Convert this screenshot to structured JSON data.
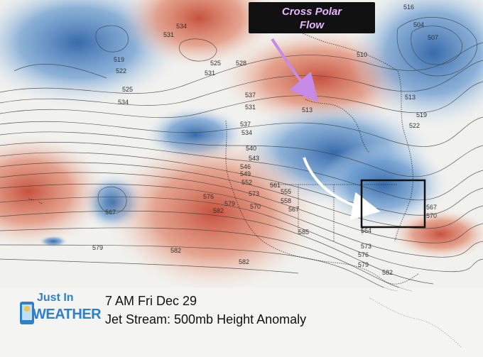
{
  "callout": {
    "line1": "Cross Polar",
    "line2": "Flow"
  },
  "caption": {
    "time": "7 AM Fri Dec 29",
    "title": "Jet Stream: 500mb Height Anomaly"
  },
  "logo": {
    "line1": "Just In",
    "line2": "WEATHER"
  },
  "contour_labels": [
    "531",
    "534",
    "525",
    "528",
    "531",
    "519",
    "522",
    "525",
    "534",
    "537",
    "513",
    "516",
    "510",
    "504",
    "507",
    "513",
    "519",
    "522",
    "531",
    "537",
    "534",
    "540",
    "543",
    "546",
    "549",
    "552",
    "555",
    "558",
    "561",
    "564",
    "567",
    "570",
    "573",
    "576",
    "579",
    "582",
    "567",
    "579",
    "582",
    "585",
    "582",
    "567",
    "570",
    "573",
    "576",
    "579",
    "582"
  ],
  "colors": {
    "warm_anomaly": "#d9705a",
    "cold_anomaly": "#3f78b8",
    "callout_bg": "#111111",
    "callout_text": "#e7b6ff",
    "arrow_purple": "#c58be6",
    "arrow_white": "#ffffff",
    "logo_blue": "#2f80c9"
  }
}
